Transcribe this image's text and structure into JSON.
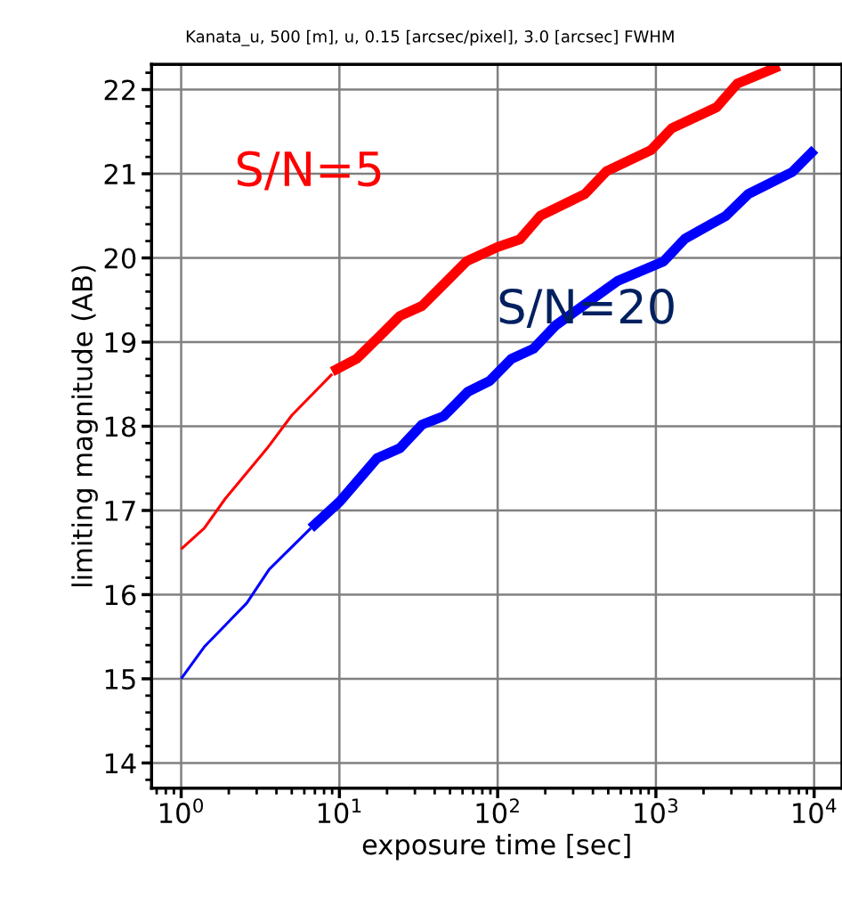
{
  "chart_data": {
    "type": "line",
    "title": "Kanata_u, 500 [m], u, 0.15 [arcsec/pixel], 3.0 [arcsec] FWHM",
    "xlabel": "exposure time [sec]",
    "ylabel": "limiting magnitude (AB)",
    "log": "x",
    "grid": true,
    "xlim": [
      0.65,
      15000
    ],
    "ylim": [
      13.7,
      22.3
    ],
    "xticks": [
      {
        "value": 1,
        "label": "10$^{0}$"
      },
      {
        "value": 10,
        "label": "10$^{1}$"
      },
      {
        "value": 100,
        "label": "10$^{2}$"
      },
      {
        "value": 1000,
        "label": "10$^{3}$"
      },
      {
        "value": 10000,
        "label": "10$^{4}$"
      }
    ],
    "yticks": [
      14,
      15,
      16,
      17,
      18,
      19,
      20,
      21,
      22
    ],
    "series": [
      {
        "color": "#ff0000",
        "x": [
          1.0,
          1.4,
          1.9,
          3.5,
          5.0,
          9.0
        ],
        "values": [
          16.54,
          16.79,
          17.14,
          17.74,
          18.13,
          18.62
        ]
      },
      {
        "name": "S/N=5",
        "color": "#ff0000",
        "x": [
          9.0,
          12.8,
          17.3,
          24.1,
          33.3,
          63.6,
          100,
          138,
          186,
          356,
          487,
          930,
          1260,
          2420,
          3270,
          6030
        ],
        "values": [
          18.65,
          18.8,
          19.04,
          19.31,
          19.43,
          19.96,
          20.13,
          20.22,
          20.5,
          20.76,
          21.03,
          21.28,
          21.54,
          21.79,
          22.07,
          22.28
        ]
      },
      {
        "color": "#0000ff",
        "x": [
          1.0,
          1.4,
          2.6,
          3.6,
          6.6
        ],
        "values": [
          15.0,
          15.38,
          15.9,
          16.3,
          16.79
        ]
      },
      {
        "name": "S/N=20",
        "color": "#0000ff",
        "x": [
          6.6,
          10.1,
          17.3,
          24.1,
          33.3,
          45.6,
          64.8,
          89.3,
          122,
          168,
          233,
          577,
          1120,
          1530,
          2770,
          3840,
          7270,
          10100
        ],
        "values": [
          16.79,
          17.11,
          17.62,
          17.74,
          18.02,
          18.12,
          18.41,
          18.54,
          18.8,
          18.92,
          19.2,
          19.73,
          19.96,
          20.23,
          20.5,
          20.76,
          21.02,
          21.29
        ]
      }
    ]
  }
}
